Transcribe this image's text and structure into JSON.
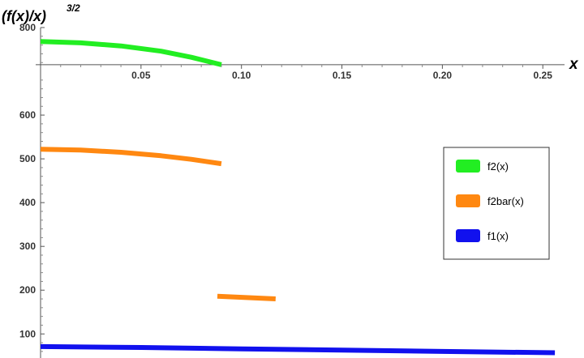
{
  "chart_data": {
    "type": "line",
    "xlabel": "x",
    "ylabel": "(f(x)/x)",
    "ylabel_exponent": "3/2",
    "xlim": [
      0,
      0.26
    ],
    "ylim": [
      45,
      800
    ],
    "axis_origin_y": 715,
    "x_ticks": [
      0.05,
      0.1,
      0.15,
      0.2,
      0.25
    ],
    "x_tick_labels": [
      "0.05",
      "0.10",
      "0.15",
      "0.20",
      "0.25"
    ],
    "y_ticks": [
      100,
      200,
      300,
      400,
      500,
      600,
      800
    ],
    "y_tick_labels": [
      "100",
      "200",
      "300",
      "400",
      "500",
      "600",
      "800"
    ],
    "grid": false,
    "legend_position": "right",
    "series": [
      {
        "name": "f2(x)",
        "color": "#22ee22",
        "segments": [
          [
            [
              0.0,
              768
            ],
            [
              0.02,
              765
            ],
            [
              0.04,
              758
            ],
            [
              0.06,
              746
            ],
            [
              0.075,
              732
            ],
            [
              0.09,
              715
            ]
          ]
        ]
      },
      {
        "name": "f2bar(x)",
        "color": "#ff8811",
        "segments": [
          [
            [
              0.0,
              522
            ],
            [
              0.02,
              520
            ],
            [
              0.04,
              515
            ],
            [
              0.06,
              507
            ],
            [
              0.075,
              499
            ],
            [
              0.09,
              489
            ]
          ],
          [
            [
              0.088,
              186
            ],
            [
              0.117,
              180
            ]
          ]
        ]
      },
      {
        "name": "f1(x)",
        "color": "#1111ee",
        "segments": [
          [
            [
              0.0,
              71
            ],
            [
              0.05,
              69
            ],
            [
              0.1,
              66
            ],
            [
              0.15,
              63
            ],
            [
              0.2,
              60
            ],
            [
              0.256,
              57
            ]
          ]
        ]
      }
    ]
  }
}
